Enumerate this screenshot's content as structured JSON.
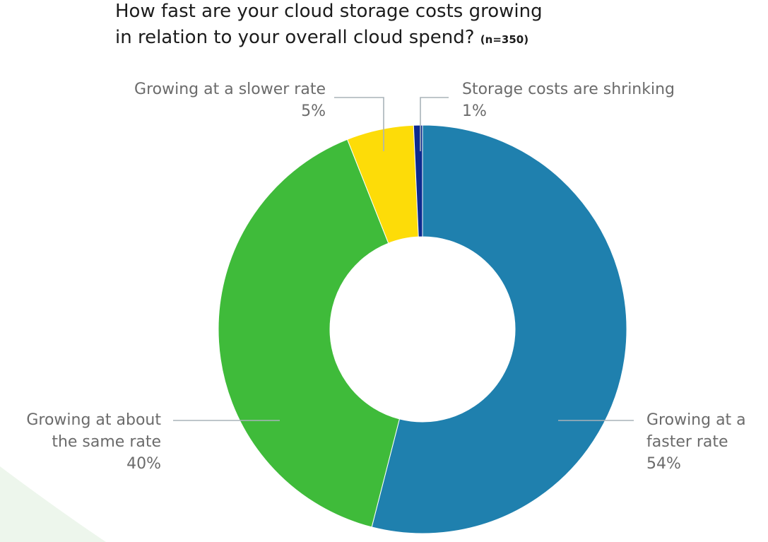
{
  "title": {
    "main_line_1": "How fast are your cloud storage costs growing",
    "main_line_2": "in relation to your overall cloud spend?",
    "sample_note": "(n=350)"
  },
  "colors": {
    "background_swoosh": "#edf6ec",
    "leader_line": "#a9b3b9",
    "label_text": "#6b6b6b"
  },
  "chart_data": {
    "type": "pie",
    "subtype": "donut",
    "start_angle": "12 o'clock",
    "direction": "clockwise",
    "slices": [
      {
        "label_lines": [
          "Growing at a",
          "faster rate"
        ],
        "value_text": "54%",
        "value": 54,
        "color": "#1f80ae"
      },
      {
        "label_lines": [
          "Growing at about",
          "the same rate"
        ],
        "value_text": "40%",
        "value": 40,
        "color": "#3fbb3a"
      },
      {
        "label_lines": [
          "Growing at a slower rate"
        ],
        "value_text": "5%",
        "value": 5.3,
        "color": "#fddc08"
      },
      {
        "label_lines": [
          "Storage costs are shrinking"
        ],
        "value_text": "1%",
        "value": 0.7,
        "color": "#0d2a8f"
      }
    ]
  }
}
